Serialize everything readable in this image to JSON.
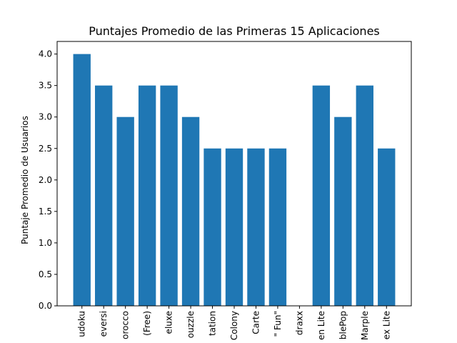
{
  "chart_data": {
    "type": "bar",
    "title": "Puntajes Promedio de las Primeras 15 Aplicaciones",
    "xlabel": "",
    "ylabel": "Puntaje Promedio de Usuarios",
    "ylim": [
      0,
      4.2
    ],
    "yticks": [
      0.0,
      0.5,
      1.0,
      1.5,
      2.0,
      2.5,
      3.0,
      3.5,
      4.0
    ],
    "ytick_labels": [
      "0.0",
      "0.5",
      "1.0",
      "1.5",
      "2.0",
      "2.5",
      "3.0",
      "3.5",
      "4.0"
    ],
    "categories": [
      "udoku",
      "eversi",
      "orocco",
      "(Free)",
      "eluxe",
      "ouzzle",
      "tation",
      "Colony",
      "Carte",
      "\" Fun\"",
      "draxx",
      "en Lite",
      "blePop",
      "Marple",
      "ex Lite"
    ],
    "values": [
      4.0,
      3.5,
      3.0,
      3.5,
      3.5,
      3.0,
      2.5,
      2.5,
      2.5,
      2.5,
      0.0,
      3.5,
      3.0,
      3.5,
      2.5
    ],
    "bar_color": "#1f77b4",
    "axis_color": "#000000",
    "background_color": "#ffffff",
    "grid": false
  }
}
